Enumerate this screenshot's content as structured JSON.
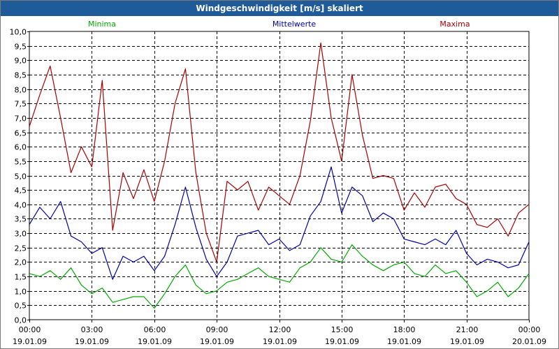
{
  "window": {
    "title": "Windgeschwindigkeit [m/s] skaliert"
  },
  "chart_data": {
    "type": "line",
    "title": "Windgeschwindigkeit [m/s] skaliert",
    "xlabel": "",
    "ylabel": "",
    "ylim": [
      0,
      10
    ],
    "yticks": [
      "0,0",
      "0,5",
      "1,0",
      "1,5",
      "2,0",
      "2,5",
      "3,0",
      "3,5",
      "4,0",
      "4,5",
      "5,0",
      "5,5",
      "6,0",
      "6,5",
      "7,0",
      "7,5",
      "8,0",
      "8,5",
      "9,0",
      "9,5",
      "10,0"
    ],
    "xlim": [
      0,
      24
    ],
    "xticks": [
      {
        "x": 0,
        "time": "00:00",
        "date": "19.01.09"
      },
      {
        "x": 3,
        "time": "03:00",
        "date": "19.01.09"
      },
      {
        "x": 6,
        "time": "06:00",
        "date": "19.01.09"
      },
      {
        "x": 9,
        "time": "09:00",
        "date": "19.01.09"
      },
      {
        "x": 12,
        "time": "12:00",
        "date": "19.01.09"
      },
      {
        "x": 15,
        "time": "15:00",
        "date": "19.01.09"
      },
      {
        "x": 18,
        "time": "18:00",
        "date": "19.01.09"
      },
      {
        "x": 21,
        "time": "21:00",
        "date": "19.01.09"
      },
      {
        "x": 24,
        "time": "00:00",
        "date": "20.01.09"
      }
    ],
    "series": [
      {
        "name": "Minima",
        "color": "#00aa00",
        "x": [
          0,
          0.5,
          1,
          1.5,
          2,
          2.5,
          3,
          3.5,
          4,
          4.5,
          5,
          5.5,
          6,
          6.5,
          7,
          7.5,
          8,
          8.5,
          9,
          9.5,
          10,
          10.5,
          11,
          11.5,
          12,
          12.5,
          13,
          13.5,
          14,
          14.5,
          15,
          15.5,
          16,
          16.5,
          17,
          17.5,
          18,
          18.5,
          19,
          19.5,
          20,
          20.5,
          21,
          21.5,
          22,
          22.5,
          23,
          23.5,
          24
        ],
        "values": [
          1.6,
          1.5,
          1.7,
          1.4,
          1.8,
          1.2,
          0.9,
          1.1,
          0.6,
          0.7,
          0.8,
          0.8,
          0.4,
          0.9,
          1.5,
          1.9,
          1.2,
          0.9,
          1.0,
          1.3,
          1.4,
          1.6,
          1.8,
          1.5,
          1.4,
          1.3,
          1.8,
          2.0,
          2.5,
          2.1,
          2.0,
          2.6,
          2.2,
          1.9,
          1.7,
          1.9,
          2.0,
          1.6,
          1.5,
          1.9,
          1.6,
          1.7,
          1.3,
          0.8,
          1.0,
          1.3,
          0.8,
          1.1,
          1.6
        ]
      },
      {
        "name": "Mittelwerte",
        "color": "#0000aa",
        "x": [
          0,
          0.5,
          1,
          1.5,
          2,
          2.5,
          3,
          3.5,
          4,
          4.5,
          5,
          5.5,
          6,
          6.5,
          7,
          7.5,
          8,
          8.5,
          9,
          9.5,
          10,
          10.5,
          11,
          11.5,
          12,
          12.5,
          13,
          13.5,
          14,
          14.5,
          15,
          15.5,
          16,
          16.5,
          17,
          17.5,
          18,
          18.5,
          19,
          19.5,
          20,
          20.5,
          21,
          21.5,
          22,
          22.5,
          23,
          23.5,
          24
        ],
        "values": [
          3.3,
          3.9,
          3.5,
          4.1,
          2.9,
          2.7,
          2.3,
          2.5,
          1.4,
          2.2,
          2.0,
          2.2,
          1.7,
          2.2,
          3.3,
          4.6,
          3.2,
          2.1,
          1.5,
          2.0,
          2.9,
          3.0,
          3.1,
          2.6,
          2.8,
          2.4,
          2.6,
          3.6,
          4.1,
          5.3,
          3.7,
          4.6,
          4.3,
          3.4,
          3.7,
          3.5,
          2.8,
          2.7,
          2.6,
          2.8,
          2.6,
          3.1,
          2.3,
          1.9,
          2.1,
          2.0,
          1.8,
          1.9,
          2.7
        ]
      },
      {
        "name": "Maxima",
        "color": "#aa0000",
        "x": [
          0,
          0.5,
          1,
          1.5,
          2,
          2.5,
          3,
          3.5,
          4,
          4.5,
          5,
          5.5,
          6,
          6.5,
          7,
          7.5,
          8,
          8.5,
          9,
          9.5,
          10,
          10.5,
          11,
          11.5,
          12,
          12.5,
          13,
          13.5,
          14,
          14.5,
          15,
          15.5,
          16,
          16.5,
          17,
          17.5,
          18,
          18.5,
          19,
          19.5,
          20,
          20.5,
          21,
          21.5,
          22,
          22.5,
          23,
          23.5,
          24
        ],
        "values": [
          6.7,
          7.8,
          8.8,
          7.0,
          5.1,
          6.0,
          5.3,
          8.3,
          3.1,
          5.1,
          4.2,
          5.2,
          4.1,
          5.5,
          7.5,
          8.7,
          5.1,
          3.0,
          2.0,
          4.8,
          4.5,
          4.8,
          3.8,
          4.6,
          4.3,
          4.0,
          5.0,
          6.9,
          9.6,
          7.0,
          5.5,
          8.5,
          6.4,
          4.9,
          5.0,
          4.9,
          3.8,
          4.4,
          3.9,
          4.6,
          4.7,
          4.2,
          4.0,
          3.3,
          3.2,
          3.5,
          2.9,
          3.7,
          4.0
        ]
      }
    ]
  }
}
